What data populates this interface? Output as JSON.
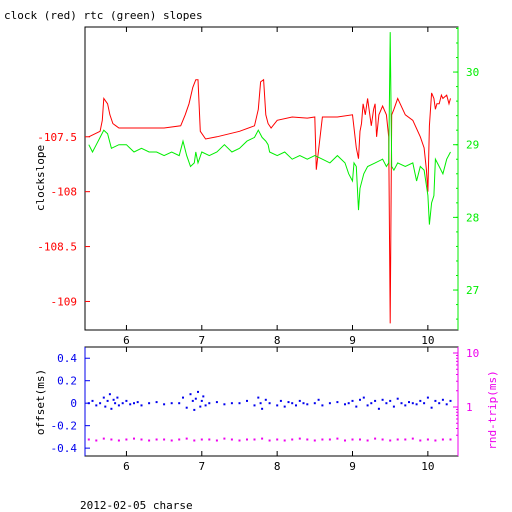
{
  "title": "clock (red) rtc (green) slopes",
  "footer": "2012-02-05 charse",
  "chart_data": [
    {
      "type": "line",
      "panel": "top",
      "xlim": [
        5.45,
        10.4
      ],
      "x_ticks": [
        6,
        7,
        8,
        9,
        10
      ],
      "y_left": {
        "label": "clockslope",
        "color": "#ff0000",
        "lim": [
          -109.26,
          -106.5
        ],
        "ticks": [
          -107.5,
          -108,
          -108.5,
          -109
        ],
        "tick_labels": [
          "-107.5",
          "-108",
          "-108.5",
          "-109"
        ]
      },
      "y_right": {
        "color": "#00ee00",
        "lim": [
          26.45,
          30.62
        ],
        "ticks": [
          30,
          29,
          28,
          27
        ],
        "tick_labels": [
          "30",
          "29",
          "28",
          "27"
        ]
      },
      "series": [
        {
          "axis": "left",
          "color": "#ff0000",
          "x": [
            5.5,
            5.65,
            5.68,
            5.7,
            5.75,
            5.78,
            5.82,
            5.86,
            5.9,
            6.0,
            6.3,
            6.5,
            6.72,
            6.78,
            6.83,
            6.88,
            6.92,
            6.95,
            6.98,
            7.05,
            7.2,
            7.5,
            7.7,
            7.75,
            7.78,
            7.82,
            7.85,
            7.88,
            7.92,
            8.0,
            8.2,
            8.4,
            8.5,
            8.52,
            8.6,
            8.8,
            9.0,
            9.05,
            9.08,
            9.1,
            9.12,
            9.14,
            9.17,
            9.2,
            9.25,
            9.28,
            9.3,
            9.32,
            9.35,
            9.4,
            9.45,
            9.48,
            9.5,
            9.52,
            9.55,
            9.6,
            9.7,
            9.8,
            9.9,
            9.95,
            9.98,
            10.0,
            10.02,
            10.05,
            10.08,
            10.1,
            10.12,
            10.15,
            10.18,
            10.2,
            10.25,
            10.28,
            10.3
          ],
          "y": [
            -107.5,
            -107.45,
            -107.35,
            -107.15,
            -107.2,
            -107.3,
            -107.38,
            -107.4,
            -107.42,
            -107.42,
            -107.42,
            -107.42,
            -107.4,
            -107.3,
            -107.2,
            -107.05,
            -106.98,
            -106.98,
            -107.45,
            -107.52,
            -107.5,
            -107.45,
            -107.4,
            -107.25,
            -107.0,
            -106.98,
            -107.3,
            -107.38,
            -107.42,
            -107.35,
            -107.32,
            -107.33,
            -107.32,
            -107.8,
            -107.32,
            -107.32,
            -107.3,
            -107.6,
            -107.7,
            -107.45,
            -107.38,
            -107.2,
            -107.3,
            -107.15,
            -107.4,
            -107.25,
            -107.2,
            -107.5,
            -107.3,
            -107.22,
            -107.3,
            -107.5,
            -109.2,
            -107.3,
            -107.25,
            -107.15,
            -107.3,
            -107.35,
            -107.5,
            -107.6,
            -107.8,
            -108.0,
            -107.4,
            -107.1,
            -107.15,
            -107.25,
            -107.2,
            -107.2,
            -107.12,
            -107.15,
            -107.12,
            -107.2,
            -107.15
          ]
        },
        {
          "axis": "right",
          "color": "#00ee00",
          "x": [
            5.5,
            5.55,
            5.6,
            5.65,
            5.7,
            5.75,
            5.8,
            5.9,
            6.0,
            6.1,
            6.2,
            6.3,
            6.4,
            6.5,
            6.6,
            6.7,
            6.75,
            6.8,
            6.85,
            6.9,
            6.92,
            6.95,
            7.0,
            7.1,
            7.2,
            7.3,
            7.4,
            7.5,
            7.6,
            7.7,
            7.75,
            7.8,
            7.85,
            7.88,
            7.9,
            8.0,
            8.1,
            8.2,
            8.3,
            8.4,
            8.5,
            8.6,
            8.7,
            8.8,
            8.85,
            8.9,
            8.95,
            9.0,
            9.02,
            9.05,
            9.08,
            9.1,
            9.15,
            9.2,
            9.3,
            9.4,
            9.45,
            9.48,
            9.5,
            9.52,
            9.55,
            9.6,
            9.7,
            9.8,
            9.85,
            9.9,
            9.95,
            10.0,
            10.02,
            10.05,
            10.08,
            10.1,
            10.15,
            10.2,
            10.25,
            10.3
          ],
          "y": [
            29.0,
            28.9,
            29.0,
            29.1,
            29.2,
            29.15,
            28.95,
            29.0,
            29.0,
            28.9,
            28.95,
            28.9,
            28.9,
            28.85,
            28.9,
            28.85,
            29.05,
            28.85,
            28.7,
            28.75,
            28.9,
            28.75,
            28.9,
            28.85,
            28.9,
            29.0,
            28.9,
            28.95,
            29.05,
            29.1,
            29.2,
            29.1,
            29.05,
            29.0,
            28.9,
            28.85,
            28.9,
            28.8,
            28.85,
            28.8,
            28.85,
            28.8,
            28.75,
            28.85,
            28.8,
            28.75,
            28.6,
            28.5,
            28.75,
            28.7,
            28.1,
            28.4,
            28.6,
            28.7,
            28.75,
            28.8,
            28.7,
            28.75,
            30.55,
            28.7,
            28.65,
            28.75,
            28.7,
            28.75,
            28.5,
            28.7,
            28.65,
            28.3,
            27.9,
            28.2,
            28.3,
            28.8,
            28.7,
            28.6,
            28.8,
            28.9
          ]
        }
      ]
    },
    {
      "type": "scatter",
      "panel": "bottom",
      "xlim": [
        5.45,
        10.4
      ],
      "x_ticks": [
        6,
        7,
        8,
        9,
        10
      ],
      "y_left": {
        "label": "offset(ms)",
        "color": "#0000ee",
        "lim": [
          -0.47,
          0.5
        ],
        "ticks": [
          0.4,
          0.2,
          0,
          -0.2,
          -0.4
        ],
        "tick_labels": [
          "0.4",
          "0.2",
          "0",
          "-0.2",
          "-0.4"
        ]
      },
      "y_right": {
        "label": "rnd-trip(ms)",
        "color": "#ee00ee",
        "scale": "log",
        "ticks": [
          10,
          1
        ],
        "tick_labels": [
          "10",
          "1"
        ]
      },
      "series": [
        {
          "axis": "left",
          "color": "#0000ee",
          "x": [
            5.5,
            5.55,
            5.6,
            5.65,
            5.7,
            5.72,
            5.75,
            5.78,
            5.8,
            5.83,
            5.85,
            5.88,
            5.9,
            5.95,
            6.0,
            6.05,
            6.1,
            6.15,
            6.2,
            6.3,
            6.4,
            6.5,
            6.6,
            6.7,
            6.75,
            6.8,
            6.85,
            6.88,
            6.9,
            6.92,
            6.95,
            6.98,
            7.0,
            7.02,
            7.05,
            7.1,
            7.2,
            7.3,
            7.4,
            7.5,
            7.6,
            7.7,
            7.75,
            7.78,
            7.8,
            7.85,
            7.9,
            8.0,
            8.05,
            8.1,
            8.15,
            8.2,
            8.25,
            8.3,
            8.35,
            8.4,
            8.5,
            8.55,
            8.6,
            8.7,
            8.8,
            8.9,
            8.95,
            9.0,
            9.05,
            9.1,
            9.15,
            9.2,
            9.25,
            9.3,
            9.35,
            9.4,
            9.45,
            9.5,
            9.55,
            9.6,
            9.65,
            9.7,
            9.75,
            9.8,
            9.85,
            9.9,
            9.95,
            10.0,
            10.05,
            10.1,
            10.15,
            10.2,
            10.25,
            10.3
          ],
          "y": [
            0.0,
            0.02,
            -0.02,
            0.0,
            0.05,
            -0.03,
            0.02,
            0.08,
            -0.05,
            0.03,
            0.0,
            0.05,
            -0.02,
            0.0,
            0.02,
            -0.01,
            0.0,
            0.01,
            -0.02,
            0.0,
            0.01,
            -0.01,
            0.0,
            0.0,
            0.05,
            -0.04,
            0.08,
            0.02,
            -0.06,
            0.04,
            0.1,
            -0.03,
            0.02,
            0.06,
            -0.02,
            0.0,
            0.01,
            -0.01,
            0.0,
            0.0,
            0.02,
            -0.02,
            0.05,
            0.0,
            -0.05,
            0.03,
            0.0,
            -0.02,
            0.02,
            -0.03,
            0.01,
            0.0,
            -0.02,
            0.02,
            0.0,
            -0.01,
            0.0,
            0.03,
            -0.02,
            0.0,
            0.01,
            -0.01,
            0.0,
            0.02,
            -0.03,
            0.03,
            0.05,
            -0.02,
            0.0,
            0.02,
            -0.05,
            0.03,
            0.0,
            0.02,
            -0.03,
            0.04,
            0.0,
            -0.02,
            0.01,
            0.0,
            -0.01,
            0.02,
            0.0,
            0.05,
            -0.04,
            0.02,
            0.0,
            0.03,
            -0.01,
            0.02
          ]
        },
        {
          "axis": "right",
          "color": "#ee00ee",
          "x": [
            5.5,
            5.6,
            5.7,
            5.8,
            5.9,
            6.0,
            6.1,
            6.2,
            6.3,
            6.4,
            6.5,
            6.6,
            6.7,
            6.8,
            6.9,
            7.0,
            7.1,
            7.2,
            7.3,
            7.4,
            7.5,
            7.6,
            7.7,
            7.8,
            7.9,
            8.0,
            8.1,
            8.2,
            8.3,
            8.4,
            8.5,
            8.6,
            8.7,
            8.8,
            8.9,
            9.0,
            9.1,
            9.2,
            9.3,
            9.4,
            9.5,
            9.6,
            9.7,
            9.8,
            9.9,
            10.0,
            10.1,
            10.2,
            10.3
          ],
          "y": [
            0.25,
            0.24,
            0.26,
            0.25,
            0.24,
            0.25,
            0.26,
            0.25,
            0.24,
            0.25,
            0.25,
            0.24,
            0.25,
            0.26,
            0.24,
            0.25,
            0.25,
            0.24,
            0.26,
            0.25,
            0.24,
            0.25,
            0.25,
            0.26,
            0.24,
            0.25,
            0.24,
            0.25,
            0.26,
            0.25,
            0.24,
            0.25,
            0.25,
            0.26,
            0.24,
            0.25,
            0.25,
            0.24,
            0.26,
            0.25,
            0.24,
            0.25,
            0.25,
            0.26,
            0.24,
            0.25,
            0.24,
            0.25,
            0.25
          ]
        }
      ]
    }
  ]
}
